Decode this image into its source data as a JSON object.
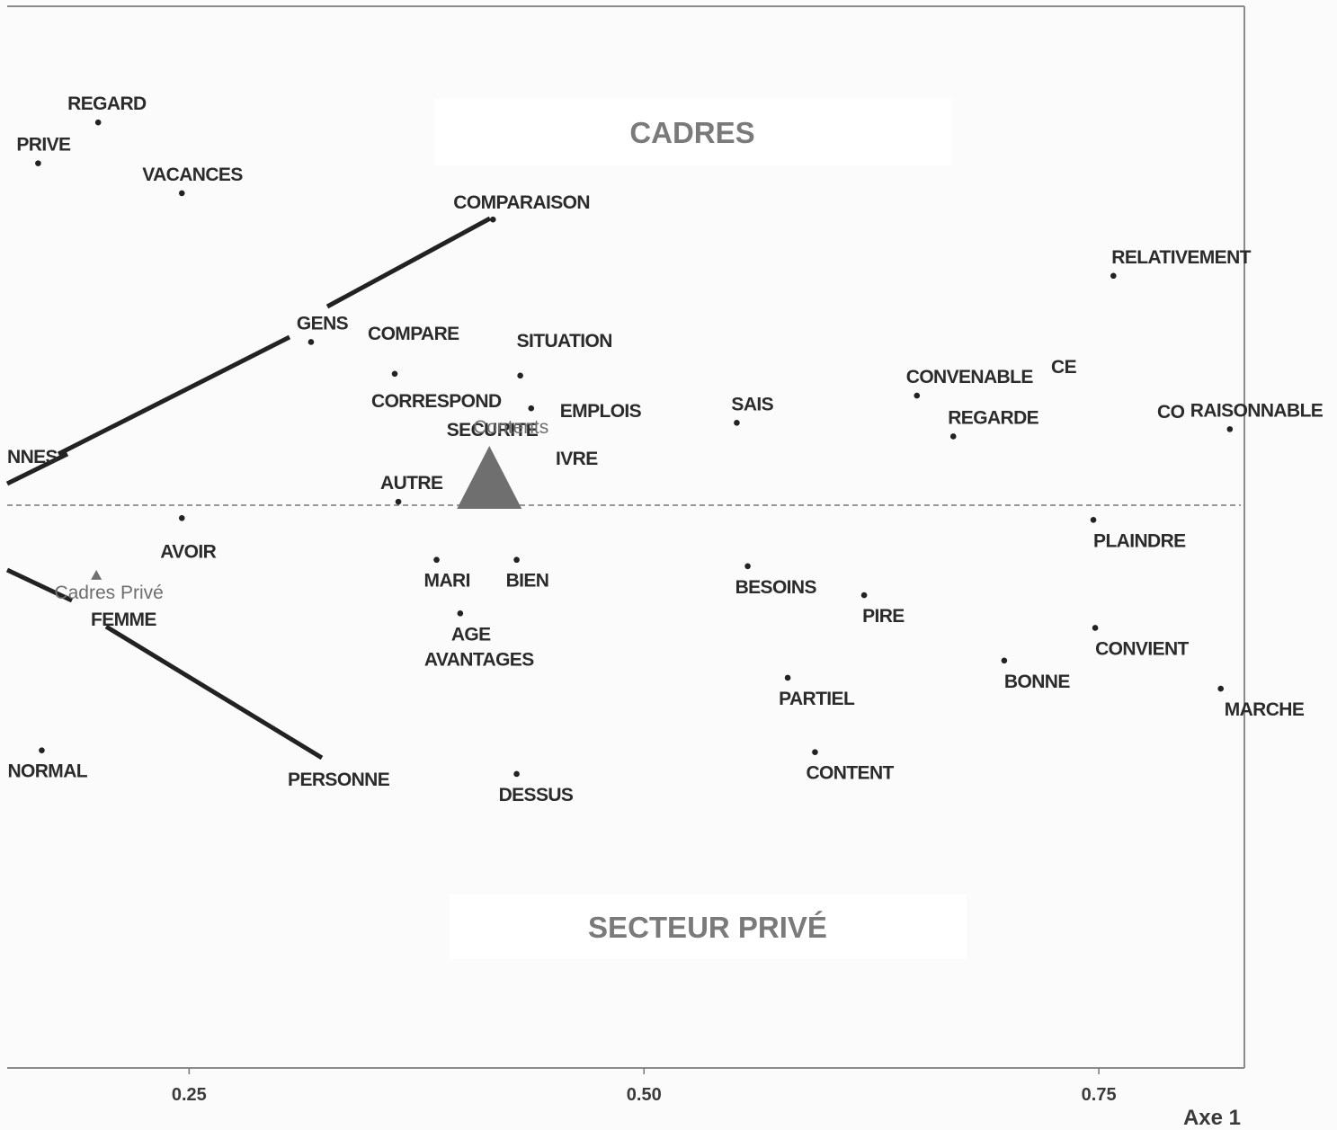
{
  "chart_data": {
    "type": "scatter",
    "xlabel": "Axe 1",
    "xlim": [
      0.15,
      0.83
    ],
    "ylim": [
      -0.62,
      0.55
    ],
    "x_ticks": [
      {
        "value": 0.25,
        "label": "0.25"
      },
      {
        "value": 0.5,
        "label": "0.50"
      },
      {
        "value": 0.75,
        "label": "0.75"
      }
    ],
    "reference_line_y": 0,
    "region_labels": [
      {
        "text": "CADRES",
        "x": 0.428,
        "y": 0.41
      },
      {
        "text": "SECTEUR PRIVÉ",
        "x": 0.436,
        "y": -0.465
      }
    ],
    "categories": [
      {
        "label": "Contents",
        "x": 0.415,
        "y": 0.015,
        "size": "large"
      },
      {
        "label": "Cadres Privé",
        "x": 0.199,
        "y": -0.079,
        "size": "small"
      }
    ],
    "points": [
      {
        "label": "REGARD",
        "x": 0.2,
        "y": 0.422
      },
      {
        "label": "PRIVE",
        "x": 0.167,
        "y": 0.377
      },
      {
        "label": "VACANCES",
        "x": 0.246,
        "y": 0.344
      },
      {
        "label": "COMPARAISON",
        "x": 0.417,
        "y": 0.315
      },
      {
        "label": "RELATIVEMENT",
        "x": 0.758,
        "y": 0.253
      },
      {
        "label": "GENS",
        "x": 0.317,
        "y": 0.18
      },
      {
        "label": "COMPARE",
        "x": 0.363,
        "y": 0.145
      },
      {
        "label": "SITUATION",
        "x": 0.432,
        "y": 0.143
      },
      {
        "label": "CONVENABLE",
        "x": 0.65,
        "y": 0.121
      },
      {
        "label": "CORRESPOND",
        "x": 0.363,
        "y": 0.145,
        "label_only": true
      },
      {
        "label": "EMPLOIS",
        "x": 0.438,
        "y": 0.107
      },
      {
        "label": "SAIS",
        "x": 0.551,
        "y": 0.091
      },
      {
        "label": "REGARDE",
        "x": 0.67,
        "y": 0.076
      },
      {
        "label": "RAISONNABLE",
        "x": 0.822,
        "y": 0.084
      },
      {
        "label": "SECURITE",
        "x": 0.438,
        "y": 0.107,
        "label_only": true
      },
      {
        "label": "AUTRE",
        "x": 0.365,
        "y": 0.004
      },
      {
        "label": "AVOIR",
        "x": 0.246,
        "y": -0.014
      },
      {
        "label": "PLAINDRE",
        "x": 0.747,
        "y": -0.016
      },
      {
        "label": "MARI",
        "x": 0.386,
        "y": -0.06
      },
      {
        "label": "BIEN",
        "x": 0.43,
        "y": -0.06
      },
      {
        "label": "BESOINS",
        "x": 0.557,
        "y": -0.067
      },
      {
        "label": "PIRE",
        "x": 0.621,
        "y": -0.099
      },
      {
        "label": "AGE",
        "x": 0.399,
        "y": -0.119
      },
      {
        "label": "AVANTAGES",
        "x": 0.399,
        "y": -0.119,
        "label_only": true
      },
      {
        "label": "CONVIENT",
        "x": 0.748,
        "y": -0.135
      },
      {
        "label": "BONNE",
        "x": 0.698,
        "y": -0.171
      },
      {
        "label": "PARTIEL",
        "x": 0.579,
        "y": -0.19
      },
      {
        "label": "MARCHE",
        "x": 0.817,
        "y": -0.202
      },
      {
        "label": "NORMAL",
        "x": 0.169,
        "y": -0.27
      },
      {
        "label": "CONTENT",
        "x": 0.594,
        "y": -0.272
      },
      {
        "label": "DESSUS",
        "x": 0.43,
        "y": -0.296
      },
      {
        "label": "PERSONNE",
        "x": 0.322,
        "y": -0.28,
        "label_only": true
      }
    ],
    "partial_labels": [
      "NNES",
      "FEMME",
      "IVRE",
      "CO",
      "CE"
    ]
  }
}
